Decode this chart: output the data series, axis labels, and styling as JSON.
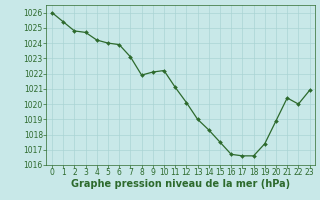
{
  "x": [
    0,
    1,
    2,
    3,
    4,
    5,
    6,
    7,
    8,
    9,
    10,
    11,
    12,
    13,
    14,
    15,
    16,
    17,
    18,
    19,
    20,
    21,
    22,
    23
  ],
  "y": [
    1026.0,
    1025.4,
    1024.8,
    1024.7,
    1024.2,
    1024.0,
    1023.9,
    1023.1,
    1021.9,
    1022.1,
    1022.2,
    1021.1,
    1020.1,
    1019.0,
    1018.3,
    1017.5,
    1016.7,
    1016.6,
    1016.6,
    1017.4,
    1018.9,
    1020.4,
    1020.0,
    1020.9
  ],
  "ylim": [
    1016,
    1026.5
  ],
  "yticks": [
    1016,
    1017,
    1018,
    1019,
    1020,
    1021,
    1022,
    1023,
    1024,
    1025,
    1026
  ],
  "xlim": [
    -0.5,
    23.5
  ],
  "xticks": [
    0,
    1,
    2,
    3,
    4,
    5,
    6,
    7,
    8,
    9,
    10,
    11,
    12,
    13,
    14,
    15,
    16,
    17,
    18,
    19,
    20,
    21,
    22,
    23
  ],
  "line_color": "#2d6a2d",
  "marker_color": "#2d6a2d",
  "bg_color": "#c8e8e8",
  "grid_color": "#aad4d4",
  "xlabel": "Graphe pression niveau de la mer (hPa)",
  "xlabel_color": "#2d6a2d",
  "tick_color": "#2d6a2d",
  "tick_fontsize": 5.5,
  "xlabel_fontsize": 7.0
}
